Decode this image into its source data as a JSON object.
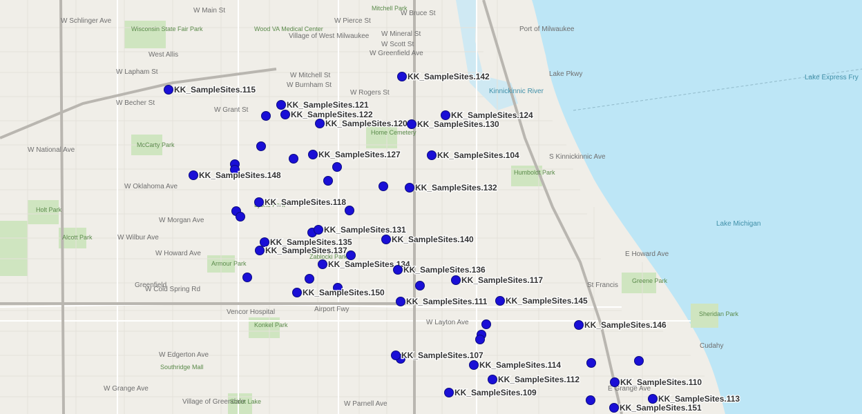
{
  "places": [
    {
      "label": "W Main St"
    },
    {
      "label": "W Schlinger Ave"
    },
    {
      "label": "Wisconsin State Fair Park"
    },
    {
      "label": "West Allis"
    },
    {
      "label": "Village of West Milwaukee"
    },
    {
      "label": "Wood VA Medical Center"
    },
    {
      "label": "Mitchell Park"
    },
    {
      "label": "W Bruce St"
    },
    {
      "label": "Port of Milwaukee"
    },
    {
      "label": "Lake Express Fry"
    },
    {
      "label": "Lake Michigan"
    },
    {
      "label": "Home Cemetery"
    },
    {
      "label": "Humboldt Park"
    },
    {
      "label": "McCarty Park"
    },
    {
      "label": "Holt Park"
    },
    {
      "label": "Alcott Park"
    },
    {
      "label": "Greenfield"
    },
    {
      "label": "Airport Fwy"
    },
    {
      "label": "Armour Park"
    },
    {
      "label": "St Francis"
    },
    {
      "label": "Greene Park"
    },
    {
      "label": "Cudahy"
    },
    {
      "label": "Sheridan Park"
    },
    {
      "label": "Konkel Park"
    },
    {
      "label": "Vencor Hospital"
    },
    {
      "label": "Southridge Mall"
    },
    {
      "label": "Village of Greendale"
    },
    {
      "label": "Scout Lake"
    },
    {
      "label": "W Layton Ave"
    },
    {
      "label": "W Oklahoma Ave"
    },
    {
      "label": "W Morgan Ave"
    },
    {
      "label": "W Howard Ave"
    },
    {
      "label": "E Howard Ave"
    },
    {
      "label": "W Lapham St"
    },
    {
      "label": "W Mitchell St"
    },
    {
      "label": "W Burnham St"
    },
    {
      "label": "W Becher St"
    },
    {
      "label": "W Grant St"
    },
    {
      "label": "W Cold Spring Rd"
    },
    {
      "label": "W Edgerton Ave"
    },
    {
      "label": "W Grange Ave"
    },
    {
      "label": "Lake Pkwy"
    },
    {
      "label": "S Kinnickinnic Ave"
    },
    {
      "label": "Kinnickinnic River"
    },
    {
      "label": "W National Ave"
    },
    {
      "label": "W Pierce St"
    },
    {
      "label": "W Mineral St"
    },
    {
      "label": "W Scott St"
    },
    {
      "label": "W Greenfield Ave"
    },
    {
      "label": "W Rogers St"
    },
    {
      "label": "W Wilbur Ave"
    },
    {
      "label": "W Parnell Ave"
    },
    {
      "label": "E Grange Ave"
    },
    {
      "label": "Lyons Park"
    },
    {
      "label": "Zablocki Park"
    }
  ],
  "sites": [
    {
      "label": "KK_SampleSites.115"
    },
    {
      "label": "KK_SampleSites.142"
    },
    {
      "label": "KK_SampleSites.121"
    },
    {
      "label": "KK_SampleSites.122"
    },
    {
      "label": "KK_SampleSites.120"
    },
    {
      "label": "KK_SampleSites.124"
    },
    {
      "label": "KK_SampleSites.130"
    },
    {
      "label": "KK_SampleSites.127"
    },
    {
      "label": "KK_SampleSites.104"
    },
    {
      "label": "KK_SampleSites.148"
    },
    {
      "label": "KK_SampleSites.132"
    },
    {
      "label": "KK_SampleSites.118"
    },
    {
      "label": "KK_SampleSites.131"
    },
    {
      "label": "KK_SampleSites.140"
    },
    {
      "label": "KK_SampleSites.135"
    },
    {
      "label": "KK_SampleSites.137"
    },
    {
      "label": "KK_SampleSites.134"
    },
    {
      "label": "KK_SampleSites.136"
    },
    {
      "label": "KK_SampleSites.117"
    },
    {
      "label": "KK_SampleSites.150"
    },
    {
      "label": "KK_SampleSites.111"
    },
    {
      "label": "KK_SampleSites.145"
    },
    {
      "label": "KK_SampleSites.146"
    },
    {
      "label": "KK_SampleSites.107"
    },
    {
      "label": "KK_SampleSites.114"
    },
    {
      "label": "KK_SampleSites.112"
    },
    {
      "label": "KK_SampleSites.110"
    },
    {
      "label": "KK_SampleSites.109"
    },
    {
      "label": "KK_SampleSites.113"
    },
    {
      "label": "KK_SampleSites.151"
    }
  ]
}
